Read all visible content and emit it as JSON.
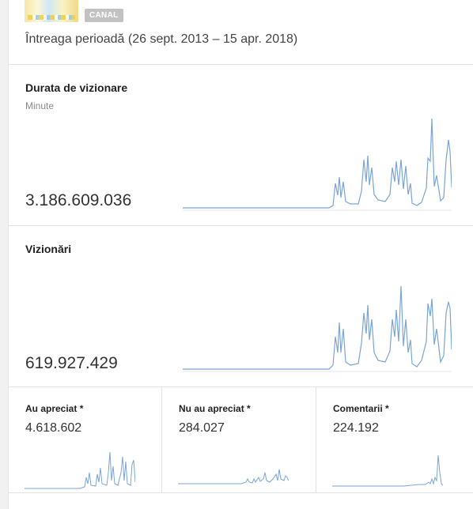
{
  "header": {
    "badge": "CANAL",
    "period": "Întreaga perioadă (26 sept. 2013 – 15 apr. 2018)"
  },
  "accent_color": "#7aa5d8",
  "watch_time": {
    "title": "Durata de vizionare",
    "subtitle": "Minute",
    "value": "3.186.609.036"
  },
  "views": {
    "title": "Vizionări",
    "value": "619.927.429"
  },
  "likes": {
    "title": "Au apreciat *",
    "value": "4.618.602"
  },
  "dislikes": {
    "title": "Nu au apreciat *",
    "value": "284.027"
  },
  "comments": {
    "title": "Comentarii *",
    "value": "224.192"
  }
}
